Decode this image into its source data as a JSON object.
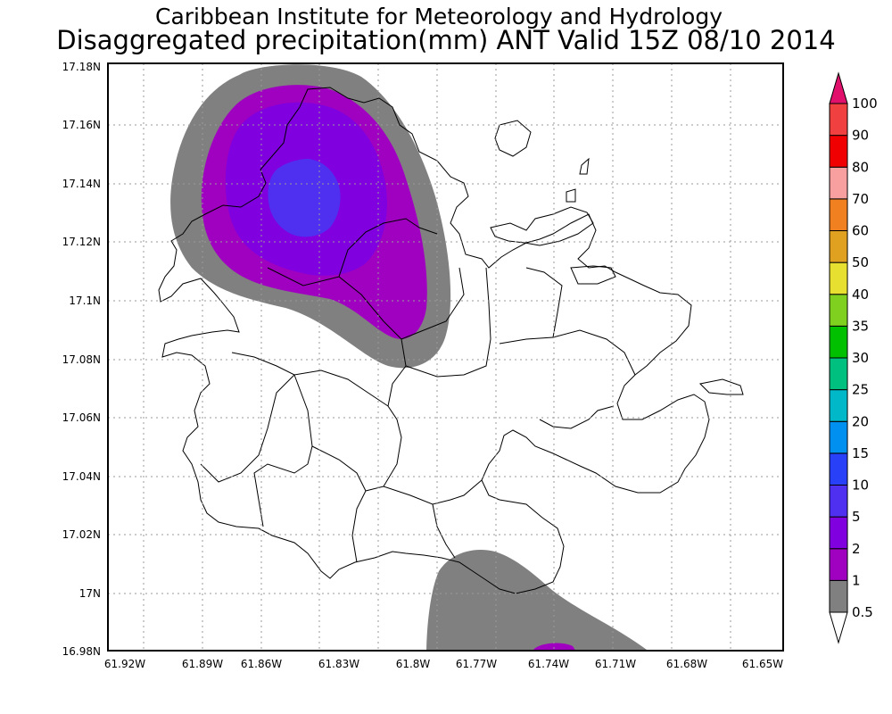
{
  "header": {
    "line1": "Caribbean Institute for Meteorology and Hydrology",
    "line2": "Disaggregated precipitation(mm) ANT Valid 15Z 08/10 2014"
  },
  "map": {
    "x_ticks": [
      "61.92W",
      "61.89W",
      "61.86W",
      "61.83W",
      "61.8W",
      "61.77W",
      "61.74W",
      "61.71W",
      "61.68W",
      "61.65W"
    ],
    "y_ticks": [
      "17.18N",
      "17.16N",
      "17.14N",
      "17.12N",
      "17.1N",
      "17.08N",
      "17.06N",
      "17.04N",
      "17.02N",
      "17N",
      "16.98N"
    ],
    "grid": "dotted"
  },
  "legend": {
    "levels": [
      "0.5",
      "1",
      "2",
      "5",
      "10",
      "15",
      "20",
      "25",
      "30",
      "35",
      "40",
      "50",
      "60",
      "70",
      "80",
      "90",
      "100"
    ],
    "colors": [
      "#808080",
      "#a000c0",
      "#8000e0",
      "#5030f0",
      "#2840f8",
      "#0090f0",
      "#00b8c8",
      "#00c080",
      "#00c000",
      "#80d020",
      "#e8e030",
      "#e0a020",
      "#f08020",
      "#f8a0a0",
      "#f00000",
      "#f04040"
    ],
    "top_color": "#e0106c"
  },
  "chart_data": {
    "type": "map",
    "title": "Disaggregated precipitation(mm) ANT Valid 15Z 08/10 2014",
    "xlim": [
      -61.925,
      -61.645
    ],
    "ylim": [
      16.98,
      17.18
    ],
    "field_colors": {
      "gt_0_5": "#808080",
      "gt_1": "#a000c0",
      "gt_2": "#8000e0",
      "gt_5": "#5030f0"
    }
  }
}
